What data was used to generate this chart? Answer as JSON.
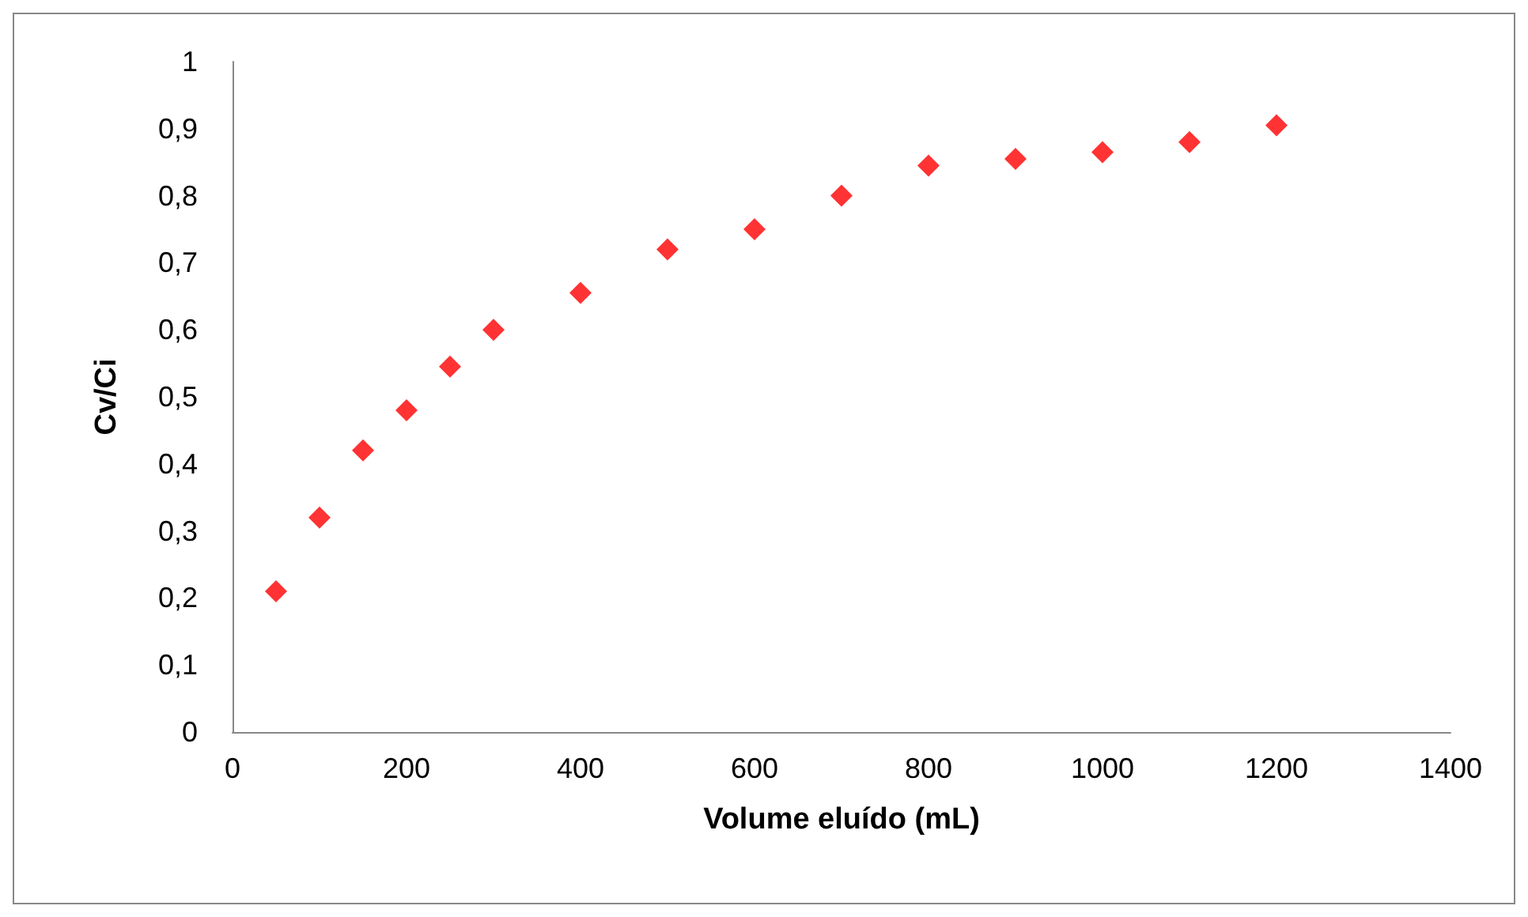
{
  "chart_data": {
    "type": "scatter",
    "xlabel": "Volume eluído (mL)",
    "ylabel": "Cv/Ci",
    "x": [
      50,
      100,
      150,
      200,
      250,
      300,
      400,
      500,
      600,
      700,
      800,
      900,
      1000,
      1100,
      1200
    ],
    "series": [
      {
        "color": "#ff0000",
        "values": [
          0.21,
          0.32,
          0.42,
          0.48,
          0.545,
          0.6,
          0.655,
          0.72,
          0.75,
          0.8,
          0.845,
          0.855,
          0.865,
          0.88,
          0.905
        ]
      }
    ],
    "xlim": [
      0,
      1400
    ],
    "xticks": [
      0,
      200,
      400,
      600,
      800,
      1000,
      1200,
      1400
    ],
    "ylim": [
      0,
      1
    ],
    "yticks": [
      0,
      {
        "value": 0.1,
        "label": "0,1"
      },
      {
        "value": 0.2,
        "label": "0,2"
      },
      {
        "value": 0.3,
        "label": "0,3"
      },
      {
        "value": 0.4,
        "label": "0,4"
      },
      {
        "value": 0.5,
        "label": "0,5"
      },
      {
        "value": 0.6,
        "label": "0,6"
      },
      {
        "value": 0.7,
        "label": "0,7"
      },
      {
        "value": 0.8,
        "label": "0,8"
      },
      {
        "value": 0.9,
        "label": "0,9"
      },
      1
    ],
    "grid": false,
    "marker": "diamond"
  }
}
